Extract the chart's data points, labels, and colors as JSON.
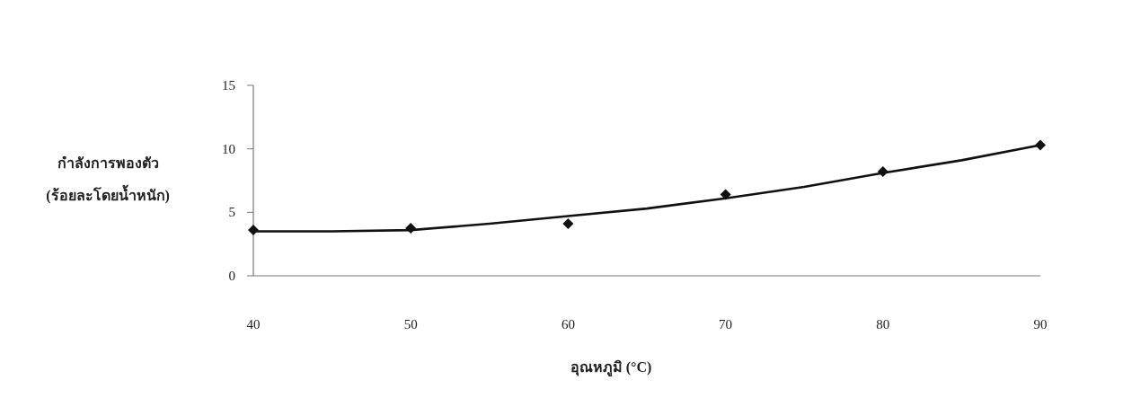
{
  "chart_data": {
    "type": "scatter",
    "xlabel": "อุณหภูมิ (°C)",
    "ylabel": "กำลังการพองตัว\n(ร้อยละโดยน้ำหนัก)",
    "xlim": [
      40,
      90
    ],
    "xticks": [
      40,
      50,
      60,
      70,
      80,
      90
    ],
    "ylim": [
      0,
      15
    ],
    "yticks": [
      0,
      5,
      10,
      15
    ],
    "grid": false,
    "x": [
      40,
      50,
      60,
      70,
      80,
      90
    ],
    "series": [
      {
        "color": "#111111",
        "marker": "diamond",
        "values": [
          3.6,
          3.75,
          4.1,
          6.4,
          8.2,
          10.3
        ]
      },
      {
        "type": "line",
        "color": "#111111",
        "marker": "none",
        "line_style": "solid",
        "x": [
          40,
          45,
          50,
          55,
          60,
          65,
          70,
          75,
          80,
          85,
          90
        ],
        "values": [
          3.5,
          3.5,
          3.6,
          4.1,
          4.7,
          5.3,
          6.1,
          7.0,
          8.1,
          9.1,
          10.3
        ]
      }
    ]
  }
}
